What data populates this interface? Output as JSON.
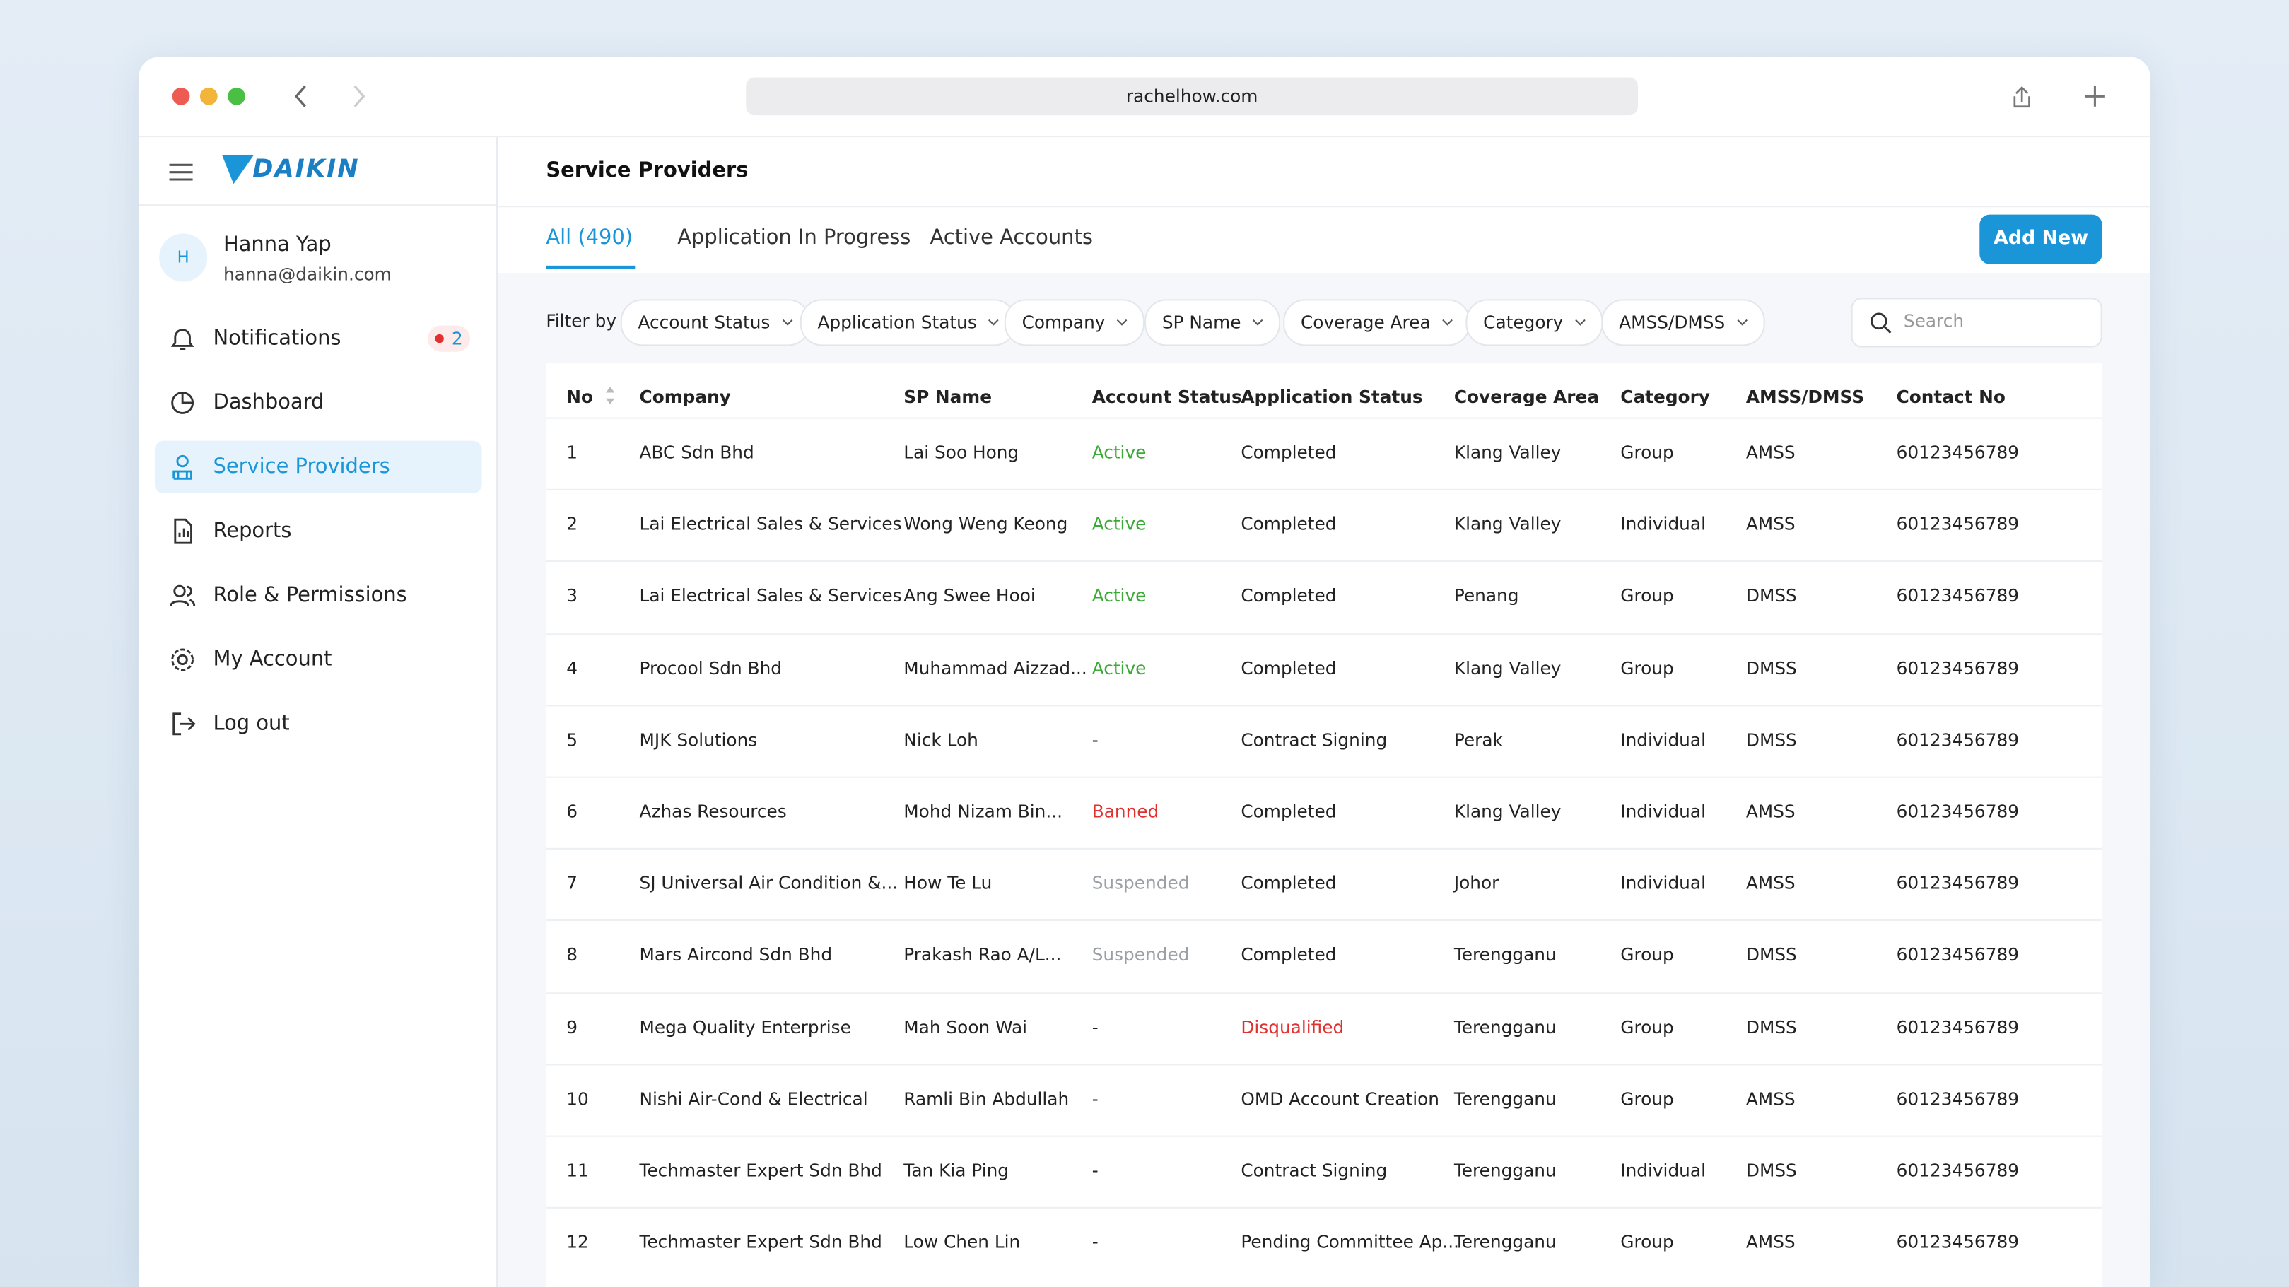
{
  "browser": {
    "url": "rachelhow.com"
  },
  "sidebar": {
    "logo": "DAIKIN",
    "avatar": "H",
    "user_name": "Hanna Yap",
    "user_email": "hanna@daikin.com",
    "nav": [
      {
        "label": "Notifications",
        "badge": "2"
      },
      {
        "label": "Dashboard"
      },
      {
        "label": "Service Providers"
      },
      {
        "label": "Reports"
      },
      {
        "label": "Role & Permissions"
      },
      {
        "label": "My Account"
      },
      {
        "label": "Log out"
      }
    ]
  },
  "header": {
    "title": "Service Providers"
  },
  "tabs": [
    "All (490)",
    "Application In Progress",
    "Active Accounts"
  ],
  "add_button": "Add New",
  "filter": {
    "label": "Filter by",
    "options": [
      "Account Status",
      "Application Status",
      "Company",
      "SP Name",
      "Coverage Area",
      "Category",
      "AMSS/DMSS"
    ],
    "search_placeholder": "Search"
  },
  "table": {
    "columns": [
      "No",
      "Company",
      "SP Name",
      "Account Status",
      "Application Status",
      "Coverage Area",
      "Category",
      "AMSS/DMSS",
      "Contact No"
    ],
    "rows": [
      {
        "cells": [
          "1",
          "ABC Sdn Bhd",
          "Lai Soo Hong",
          "Active",
          "Completed",
          "Klang Valley",
          "Group",
          "AMSS",
          "60123456789"
        ],
        "colors": {
          "3": "#3aa935"
        }
      },
      {
        "cells": [
          "2",
          "Lai Electrical Sales & Services",
          "Wong Weng Keong",
          "Active",
          "Completed",
          "Klang Valley",
          "Individual",
          "AMSS",
          "60123456789"
        ],
        "colors": {
          "3": "#3aa935"
        }
      },
      {
        "cells": [
          "3",
          "Lai Electrical Sales & Services",
          "Ang Swee Hooi",
          "Active",
          "Completed",
          "Penang",
          "Group",
          "DMSS",
          "60123456789"
        ],
        "colors": {
          "3": "#3aa935"
        }
      },
      {
        "cells": [
          "4",
          "Procool Sdn Bhd",
          "Muhammad Aizzad...",
          "Active",
          "Completed",
          "Klang Valley",
          "Group",
          "DMSS",
          "60123456789"
        ],
        "colors": {
          "3": "#3aa935"
        }
      },
      {
        "cells": [
          "5",
          "MJK Solutions",
          "Nick Loh",
          "-",
          "Contract Signing",
          "Perak",
          "Individual",
          "DMSS",
          "60123456789"
        ]
      },
      {
        "cells": [
          "6",
          "Azhas Resources",
          "Mohd Nizam Bin...",
          "Banned",
          "Completed",
          "Klang Valley",
          "Individual",
          "AMSS",
          "60123456789"
        ],
        "colors": {
          "3": "#e0302f"
        }
      },
      {
        "cells": [
          "7",
          "SJ Universal Air Condition &...",
          "How Te Lu",
          "Suspended",
          "Completed",
          "Johor",
          "Individual",
          "AMSS",
          "60123456789"
        ],
        "colors": {
          "3": "#9aa0a6"
        }
      },
      {
        "cells": [
          "8",
          "Mars Aircond Sdn Bhd",
          "Prakash Rao A/L...",
          "Suspended",
          "Completed",
          "Terengganu",
          "Group",
          "DMSS",
          "60123456789"
        ],
        "colors": {
          "3": "#9aa0a6"
        }
      },
      {
        "cells": [
          "9",
          "Mega Quality Enterprise",
          "Mah Soon Wai",
          "-",
          "Disqualified",
          "Terengganu",
          "Group",
          "DMSS",
          "60123456789"
        ],
        "colors": {
          "4": "#e0302f"
        }
      },
      {
        "cells": [
          "10",
          "Nishi Air-Cond & Electrical",
          "Ramli Bin Abdullah",
          "-",
          "OMD Account Creation",
          "Terengganu",
          "Group",
          "AMSS",
          "60123456789"
        ]
      },
      {
        "cells": [
          "11",
          "Techmaster Expert Sdn Bhd",
          "Tan Kia Ping",
          "-",
          "Contract Signing",
          "Terengganu",
          "Individual",
          "DMSS",
          "60123456789"
        ]
      },
      {
        "cells": [
          "12",
          "Techmaster Expert Sdn Bhd",
          "Low Chen Lin",
          "-",
          "Pending Committee Ap...",
          "Terengganu",
          "Group",
          "AMSS",
          "60123456789"
        ]
      }
    ]
  }
}
